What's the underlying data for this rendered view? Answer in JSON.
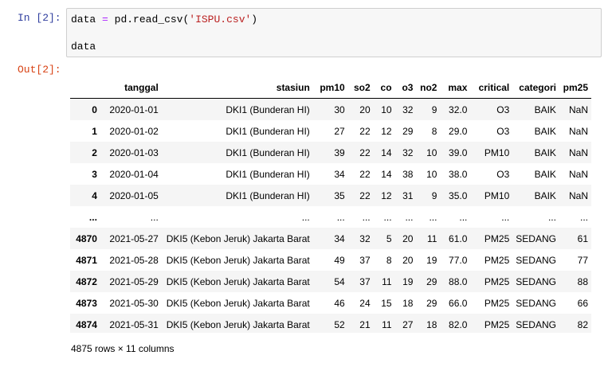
{
  "input_prompt": "In [2]:",
  "output_prompt": "Out[2]:",
  "code": {
    "line1": {
      "var": "data",
      "op": "=",
      "call": "pd.read_csv(",
      "arg": "'ISPU.csv'",
      "close": ")"
    },
    "line2": "data"
  },
  "table": {
    "columns": [
      "",
      "tanggal",
      "stasiun",
      "pm10",
      "so2",
      "co",
      "o3",
      "no2",
      "max",
      "critical",
      "categori",
      "pm25"
    ],
    "rows": [
      [
        "0",
        "2020-01-01",
        "DKI1 (Bunderan HI)",
        "30",
        "20",
        "10",
        "32",
        "9",
        "32.0",
        "O3",
        "BAIK",
        "NaN"
      ],
      [
        "1",
        "2020-01-02",
        "DKI1 (Bunderan HI)",
        "27",
        "22",
        "12",
        "29",
        "8",
        "29.0",
        "O3",
        "BAIK",
        "NaN"
      ],
      [
        "2",
        "2020-01-03",
        "DKI1 (Bunderan HI)",
        "39",
        "22",
        "14",
        "32",
        "10",
        "39.0",
        "PM10",
        "BAIK",
        "NaN"
      ],
      [
        "3",
        "2020-01-04",
        "DKI1 (Bunderan HI)",
        "34",
        "22",
        "14",
        "38",
        "10",
        "38.0",
        "O3",
        "BAIK",
        "NaN"
      ],
      [
        "4",
        "2020-01-05",
        "DKI1 (Bunderan HI)",
        "35",
        "22",
        "12",
        "31",
        "9",
        "35.0",
        "PM10",
        "BAIK",
        "NaN"
      ],
      [
        "...",
        "...",
        "...",
        "...",
        "...",
        "...",
        "...",
        "...",
        "...",
        "...",
        "...",
        "..."
      ],
      [
        "4870",
        "2021-05-27",
        "DKI5 (Kebon Jeruk) Jakarta Barat",
        "34",
        "32",
        "5",
        "20",
        "11",
        "61.0",
        "PM25",
        "SEDANG",
        "61"
      ],
      [
        "4871",
        "2021-05-28",
        "DKI5 (Kebon Jeruk) Jakarta Barat",
        "49",
        "37",
        "8",
        "20",
        "19",
        "77.0",
        "PM25",
        "SEDANG",
        "77"
      ],
      [
        "4872",
        "2021-05-29",
        "DKI5 (Kebon Jeruk) Jakarta Barat",
        "54",
        "37",
        "11",
        "19",
        "29",
        "88.0",
        "PM25",
        "SEDANG",
        "88"
      ],
      [
        "4873",
        "2021-05-30",
        "DKI5 (Kebon Jeruk) Jakarta Barat",
        "46",
        "24",
        "15",
        "18",
        "29",
        "66.0",
        "PM25",
        "SEDANG",
        "66"
      ],
      [
        "4874",
        "2021-05-31",
        "DKI5 (Kebon Jeruk) Jakarta Barat",
        "52",
        "21",
        "11",
        "27",
        "18",
        "82.0",
        "PM25",
        "SEDANG",
        "82"
      ]
    ]
  },
  "footer": "4875 rows × 11 columns"
}
